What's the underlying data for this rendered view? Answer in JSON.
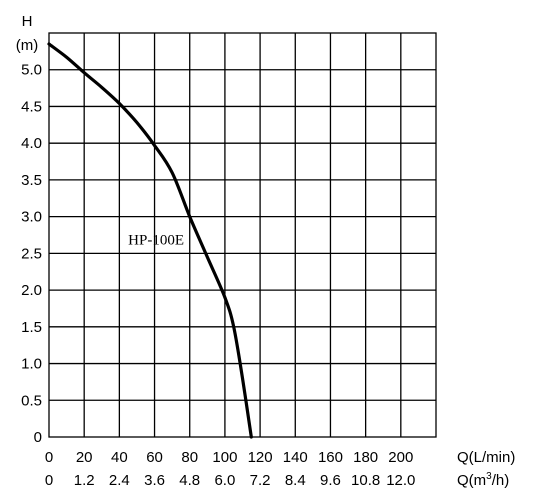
{
  "chart_data": {
    "type": "line",
    "grid": true,
    "ylabel_lines": [
      "H",
      "(m)"
    ],
    "xlabel_primary": "Q(L/min)",
    "xlabel_secondary": "Q(m³/h)",
    "xlabel_secondary_parts": {
      "pre": "Q(m",
      "sup": "3",
      "post": "/h)"
    },
    "xlim": [
      0,
      220
    ],
    "ylim": [
      0,
      5.5
    ],
    "x_ticks": [
      0,
      20,
      40,
      60,
      80,
      100,
      120,
      140,
      160,
      180,
      200
    ],
    "x_tick_labels": [
      "0",
      "20",
      "40",
      "60",
      "80",
      "100",
      "120",
      "140",
      "160",
      "180",
      "200"
    ],
    "x2_tick_labels": [
      "0",
      "1.2",
      "2.4",
      "3.6",
      "4.8",
      "6.0",
      "7.2",
      "8.4",
      "9.6",
      "10.8",
      "12.0"
    ],
    "y_ticks": [
      0,
      0.5,
      1.0,
      1.5,
      2.0,
      2.5,
      3.0,
      3.5,
      4.0,
      4.5,
      5.0
    ],
    "y_tick_labels": [
      "0",
      "0.5",
      "1.0",
      "1.5",
      "2.0",
      "2.5",
      "3.0",
      "3.5",
      "4.0",
      "4.5",
      "5.0"
    ],
    "series": [
      {
        "name": "HP-100E",
        "x": [
          0,
          10,
          20,
          30,
          40,
          50,
          60,
          70,
          80,
          90,
          100,
          105,
          110,
          115
        ],
        "y": [
          5.35,
          5.17,
          4.96,
          4.76,
          4.54,
          4.28,
          3.97,
          3.6,
          3.0,
          2.45,
          1.9,
          1.5,
          0.8,
          0
        ]
      }
    ]
  }
}
